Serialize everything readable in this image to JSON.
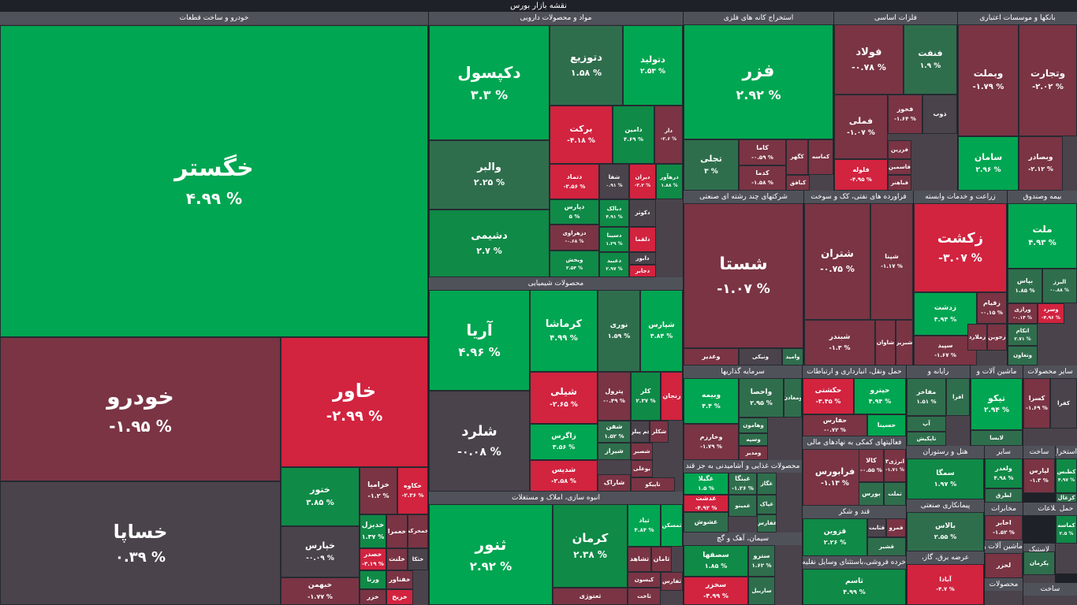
{
  "page_title": "نقشه بازار بورس",
  "colors": {
    "strong_up": "#00a651",
    "up": "#0f8a47",
    "mild_up": "#2f6e4d",
    "neutral": "#4a434b",
    "mild_down": "#7a3444",
    "down": "#a2293f",
    "strong_down": "#d2233f",
    "header": "#50525a",
    "background": "#1e2128"
  },
  "chart_data": {
    "type": "treemap",
    "title": "نقشه بازار بورس",
    "sectors": [
      {
        "name": "خودرو و ساخت قطعات",
        "stocks": [
          {
            "symbol": "خگستر",
            "change": "۴.۹۹ %"
          },
          {
            "symbol": "خودرو",
            "change": "-۱.۹۵ %"
          },
          {
            "symbol": "خاور",
            "change": "-۲.۹۹ %"
          },
          {
            "symbol": "خساپا",
            "change": "۰.۳۹ %"
          },
          {
            "symbol": "ختور",
            "change": "۳.۸۵ %"
          },
          {
            "symbol": "خپارس",
            "change": "-۰.۰۹ %"
          },
          {
            "symbol": "خبهمن",
            "change": "-۱.۷۷ %"
          },
          {
            "symbol": "خزامیا",
            "change": "-۱.۲ %"
          },
          {
            "symbol": "خکاوه",
            "change": "-۲.۳۶ %"
          },
          {
            "symbol": "خدیزل",
            "change": "۱.۳۷ %"
          },
          {
            "symbol": "خعمرا",
            "change": ""
          },
          {
            "symbol": "خمحرکه",
            "change": ""
          },
          {
            "symbol": "خصدر",
            "change": "-۳.۱۹ %"
          },
          {
            "symbol": "خلنت",
            "change": ""
          },
          {
            "symbol": "ختکا",
            "change": ""
          },
          {
            "symbol": "ورنا",
            "change": ""
          },
          {
            "symbol": "خفناور",
            "change": ""
          },
          {
            "symbol": "خزر",
            "change": ""
          },
          {
            "symbol": "خریخ",
            "change": ""
          }
        ]
      },
      {
        "name": "مواد و محصولات دارویی",
        "stocks": [
          {
            "symbol": "دکپسول",
            "change": "۳.۳ %"
          },
          {
            "symbol": "دتوزیع",
            "change": "۱.۵۸ %"
          },
          {
            "symbol": "دتولید",
            "change": "۲.۵۳ %"
          },
          {
            "symbol": "والبر",
            "change": "۲.۲۵ %"
          },
          {
            "symbol": "دشیمی",
            "change": "۲.۷ %"
          },
          {
            "symbol": "برکت",
            "change": "-۴.۱۸ %"
          },
          {
            "symbol": "دامین",
            "change": "۴.۶۹ %"
          },
          {
            "symbol": "دار",
            "change": "-۲.۶ %"
          },
          {
            "symbol": "دتماد",
            "change": "-۳.۵۶ %"
          },
          {
            "symbol": "شفا",
            "change": "۰.۹۱ %"
          },
          {
            "symbol": "دیران",
            "change": "-۳.۲ %"
          },
          {
            "symbol": "درهآور",
            "change": "۱.۸۸ %"
          },
          {
            "symbol": "دپارس",
            "change": "۵ %"
          },
          {
            "symbol": "دبالک",
            "change": "۴.۹۱ %"
          },
          {
            "symbol": "دکوثر",
            "change": ""
          },
          {
            "symbol": "دزهراوی",
            "change": "-۰.۶۸ %"
          },
          {
            "symbol": "دسینا",
            "change": "۱.۲۹ %"
          },
          {
            "symbol": "دلقما",
            "change": ""
          },
          {
            "symbol": "ویخش",
            "change": "۳.۵۴ %"
          },
          {
            "symbol": "دعبید",
            "change": "۲.۹۷ %"
          },
          {
            "symbol": "دابور",
            "change": ""
          },
          {
            "symbol": "دجابر",
            "change": ""
          }
        ]
      },
      {
        "name": "محصولات شیمیایی",
        "stocks": [
          {
            "symbol": "آریا",
            "change": "۴.۹۶ %"
          },
          {
            "symbol": "کرماشا",
            "change": "۴.۹۹ %"
          },
          {
            "symbol": "نوری",
            "change": "۱.۵۹ %"
          },
          {
            "symbol": "شپارس",
            "change": "۴.۸۴ %"
          },
          {
            "symbol": "شلرد",
            "change": "-۰.۰۸ %"
          },
          {
            "symbol": "شیلی",
            "change": "-۲.۶۵ %"
          },
          {
            "symbol": "پترول",
            "change": "-۰.۴۹ %"
          },
          {
            "symbol": "کلر",
            "change": "۲.۳۷ %"
          },
          {
            "symbol": "زنجان",
            "change": ""
          },
          {
            "symbol": "زاگرس",
            "change": "۳.۵۶ %"
          },
          {
            "symbol": "شفن",
            "change": "۱.۵۲ %"
          },
          {
            "symbol": "جم پیلن",
            "change": ""
          },
          {
            "symbol": "شکلر",
            "change": ""
          },
          {
            "symbol": "شیراز",
            "change": ""
          },
          {
            "symbol": "شصبر",
            "change": ""
          },
          {
            "symbol": "شدیس",
            "change": "-۲.۵۸ %"
          },
          {
            "symbol": "بوعلی",
            "change": ""
          },
          {
            "symbol": "شاراک",
            "change": ""
          },
          {
            "symbol": "تاپیکو",
            "change": ""
          }
        ]
      },
      {
        "name": "انبوه سازی، املاک و مستغلات",
        "stocks": [
          {
            "symbol": "ثنور",
            "change": "۲.۹۲ %"
          },
          {
            "symbol": "کرمان",
            "change": "۲.۳۸ %"
          },
          {
            "symbol": "ثباد",
            "change": "۴.۸۴ %"
          },
          {
            "symbol": "ثمسکن",
            "change": ""
          },
          {
            "symbol": "ثشاهد",
            "change": ""
          },
          {
            "symbol": "ثامان",
            "change": ""
          },
          {
            "symbol": "ثعتوژی",
            "change": ""
          },
          {
            "symbol": "کیسون",
            "change": ""
          },
          {
            "symbol": "ثفارس",
            "change": ""
          },
          {
            "symbol": "ثاخت",
            "change": ""
          }
        ]
      },
      {
        "name": "استخراج کانه های فلزی",
        "stocks": [
          {
            "symbol": "فزر",
            "change": "۲.۹۲ %"
          },
          {
            "symbol": "تجلی",
            "change": "۳ %"
          },
          {
            "symbol": "کاما",
            "change": "-۰.۵۹ %"
          },
          {
            "symbol": "کدما",
            "change": "-۱.۵۸ %"
          },
          {
            "symbol": "کگهر",
            "change": ""
          },
          {
            "symbol": "کماسه",
            "change": ""
          },
          {
            "symbol": "کبافق",
            "change": ""
          }
        ]
      },
      {
        "name": "فلزات اساسی",
        "stocks": [
          {
            "symbol": "فولاد",
            "change": "-۰.۷۸ %"
          },
          {
            "symbol": "فنفت",
            "change": "۱.۹ %"
          },
          {
            "symbol": "فملی",
            "change": "-۱.۰۷ %"
          },
          {
            "symbol": "فخوز",
            "change": "-۱.۶۴ %"
          },
          {
            "symbol": "ذوب",
            "change": ""
          },
          {
            "symbol": "فلوله",
            "change": "-۴.۹۵ %"
          },
          {
            "symbol": "فزرین",
            "change": ""
          },
          {
            "symbol": "فاسمین",
            "change": ""
          },
          {
            "symbol": "فباهنر",
            "change": ""
          }
        ]
      },
      {
        "name": "بانکها و موسسات اعتباری",
        "stocks": [
          {
            "symbol": "وبملت",
            "change": "-۱.۷۹ %"
          },
          {
            "symbol": "وتجارت",
            "change": "-۲.۰۲ %"
          },
          {
            "symbol": "سامان",
            "change": "۲.۹۶ %"
          },
          {
            "symbol": "وبصادر",
            "change": "-۲.۱۲ %"
          }
        ]
      },
      {
        "name": "شرکتهای چند رشته ای صنعتی",
        "stocks": [
          {
            "symbol": "شستا",
            "change": "-۱.۰۷ %"
          },
          {
            "symbol": "وغدیر",
            "change": ""
          },
          {
            "symbol": "ونیکی",
            "change": ""
          },
          {
            "symbol": "وامید",
            "change": ""
          }
        ]
      },
      {
        "name": "فراورده های نفتی، کک و سوخت",
        "stocks": [
          {
            "symbol": "شتران",
            "change": "-۰.۷۵ %"
          },
          {
            "symbol": "شپنا",
            "change": "-۱.۱۷ %"
          },
          {
            "symbol": "شبندر",
            "change": "-۱.۳ %"
          },
          {
            "symbol": "شاوان",
            "change": ""
          },
          {
            "symbol": "شبریز",
            "change": ""
          }
        ]
      },
      {
        "name": "زراعت و خدمات وابسته",
        "stocks": [
          {
            "symbol": "زکشت",
            "change": "-۳.۰۷ %"
          },
          {
            "symbol": "زدشت",
            "change": "۴.۹۴ %"
          },
          {
            "symbol": "زقیام",
            "change": "-۰.۱۵ %"
          },
          {
            "symbol": "سپید",
            "change": "-۱.۶۷ %"
          },
          {
            "symbol": "زملارد",
            "change": ""
          },
          {
            "symbol": "زجوین",
            "change": ""
          }
        ]
      },
      {
        "name": "بیمه وصندوق",
        "stocks": [
          {
            "symbol": "ملت",
            "change": "۴.۹۳ %"
          },
          {
            "symbol": "بپاس",
            "change": "۱.۸۵ %"
          },
          {
            "symbol": "البرز",
            "change": "-۰.۸۸ %"
          },
          {
            "symbol": "وسرد",
            "change": "-۴.۹۶ %"
          },
          {
            "symbol": "ورازی",
            "change": "-۰.۱۴ %"
          },
          {
            "symbol": "اتکام",
            "change": "۲.۷۱ %"
          },
          {
            "symbol": "وتعاون",
            "change": ""
          }
        ]
      },
      {
        "name": "سرمایه گذاریها",
        "stocks": [
          {
            "symbol": "وبیمه",
            "change": "۴.۴ %"
          },
          {
            "symbol": "واحصا",
            "change": "۲.۹۵ %"
          },
          {
            "symbol": "وخارزم",
            "change": "-۱.۷۹ %"
          },
          {
            "symbol": "وهامون",
            "change": ""
          },
          {
            "symbol": "وسپه",
            "change": ""
          },
          {
            "symbol": "ومدیر",
            "change": ""
          },
          {
            "symbol": "ومعادن",
            "change": ""
          }
        ]
      },
      {
        "name": "حمل ونقل، انبارداری و ارتباطات",
        "stocks": [
          {
            "symbol": "حکشتی",
            "change": "-۳.۴۵ %"
          },
          {
            "symbol": "حپترو",
            "change": "۴.۹۴ %"
          },
          {
            "symbol": "حفارس",
            "change": "-۰.۷۲ %"
          },
          {
            "symbol": "حسینا",
            "change": ""
          }
        ]
      },
      {
        "name": "فعالیتهای کمکی به نهادهای مالی",
        "stocks": [
          {
            "symbol": "فرابورس",
            "change": "-۱.۱۳ %"
          },
          {
            "symbol": "کالا",
            "change": "-۰.۵۵ %"
          },
          {
            "symbol": "انرژی۳",
            "change": "-۱.۷۱ %"
          },
          {
            "symbol": "بورس",
            "change": ""
          },
          {
            "symbol": "تملت",
            "change": ""
          }
        ]
      },
      {
        "name": "محصولات غذایی و آشامیدنی به جز قند",
        "stocks": [
          {
            "symbol": "غگیلا",
            "change": "۱.۵ %"
          },
          {
            "symbol": "غبنگا",
            "change": "-۱.۲۶ %"
          },
          {
            "symbol": "غدشت",
            "change": "-۴.۹۲ %"
          },
          {
            "symbol": "غگاز",
            "change": ""
          },
          {
            "symbol": "غشوش",
            "change": ""
          },
          {
            "symbol": "غمینو",
            "change": ""
          },
          {
            "symbol": "غپاک",
            "change": ""
          },
          {
            "symbol": "غفارس",
            "change": ""
          }
        ]
      },
      {
        "name": "سیمان، آهک و گچ",
        "stocks": [
          {
            "symbol": "سصفها",
            "change": "۱.۸۵ %"
          },
          {
            "symbol": "سترو",
            "change": "۱.۶۲ %"
          },
          {
            "symbol": "سخزر",
            "change": "-۴.۹۹ %"
          },
          {
            "symbol": "ساربیل",
            "change": ""
          }
        ]
      },
      {
        "name": "قند و شکر",
        "stocks": [
          {
            "symbol": "قزوین",
            "change": "۲.۲۶ %"
          },
          {
            "symbol": "قثابت",
            "change": ""
          },
          {
            "symbol": "قمرو",
            "change": ""
          },
          {
            "symbol": "قشیر",
            "change": ""
          }
        ]
      },
      {
        "name": "خرده فروشی،باستثنای وسایل نقلیه",
        "stocks": [
          {
            "symbol": "ثاسم",
            "change": "۴.۹۹ %"
          }
        ]
      },
      {
        "name": "رایانه و",
        "stocks": [
          {
            "symbol": "مفاخر",
            "change": "۱.۵۱ %"
          },
          {
            "symbol": "افرا",
            "change": ""
          },
          {
            "symbol": "آپ",
            "change": ""
          },
          {
            "symbol": "تاپکیش",
            "change": ""
          }
        ]
      },
      {
        "name": "ماشین آلات و",
        "stocks": [
          {
            "symbol": "تیکو",
            "change": "۲.۹۴ %"
          },
          {
            "symbol": "لابسا",
            "change": ""
          }
        ]
      },
      {
        "name": "سایر محصولات",
        "stocks": [
          {
            "symbol": "کسرا",
            "change": "-۱.۶۹ %"
          },
          {
            "symbol": "کفرا",
            "change": ""
          }
        ]
      },
      {
        "name": "هتل و رستوران",
        "stocks": [
          {
            "symbol": "سمگا",
            "change": "۱.۹۷ %"
          }
        ]
      },
      {
        "name": "پیمانکاری صنعتی",
        "stocks": [
          {
            "symbol": "بالاس",
            "change": "۲.۵۵ %"
          }
        ]
      },
      {
        "name": "عرضه برق، گاز،",
        "stocks": [
          {
            "symbol": "آبادا",
            "change": "-۴.۷ %"
          }
        ]
      },
      {
        "name": "سایر",
        "stocks": [
          {
            "symbol": "ولغدر",
            "change": "۴.۹۸ %"
          },
          {
            "symbol": "لطرق",
            "change": ""
          }
        ]
      },
      {
        "name": "مخابرات",
        "stocks": [
          {
            "symbol": "اخابر",
            "change": "-۱.۵۲ %"
          },
          {
            "symbol": "های وب",
            "change": "-۲.۲ %"
          }
        ]
      },
      {
        "name": "ساخت",
        "stocks": [
          {
            "symbol": "لپارس",
            "change": "-۱.۳ %"
          }
        ]
      },
      {
        "name": "استخراج",
        "stocks": [
          {
            "symbol": "کطبس",
            "change": "۴.۹۷ %"
          },
          {
            "symbol": "کزغال",
            "change": ""
          }
        ]
      },
      {
        "name": "اطلاعات",
        "stocks": []
      },
      {
        "name": "ماشین آلات و",
        "stocks": [
          {
            "symbol": "لخزر",
            "change": ""
          }
        ]
      },
      {
        "name": "حمل",
        "stocks": [
          {
            "symbol": "کماسه",
            "change": "۲.۵ %"
          }
        ]
      },
      {
        "name": "لاستیک",
        "stocks": [
          {
            "symbol": "پکرمان",
            "change": ""
          }
        ]
      },
      {
        "name": "محصولات",
        "stocks": []
      },
      {
        "name": "ساخت",
        "stocks": []
      }
    ]
  }
}
